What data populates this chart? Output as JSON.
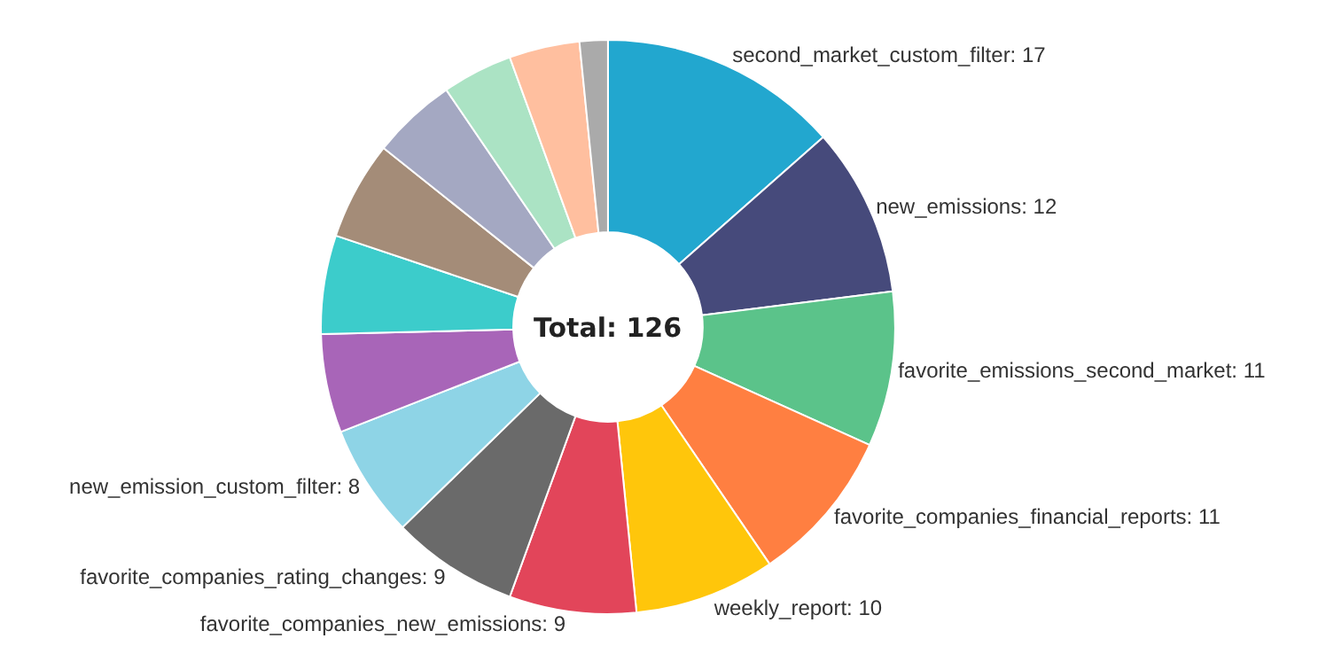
{
  "chart_data": {
    "type": "donut",
    "categories": [
      "second_market_custom_filter",
      "new_emissions",
      "favorite_emissions_second_market",
      "favorite_companies_financial_reports",
      "weekly_report",
      "favorite_companies_new_emissions",
      "favorite_companies_rating_changes",
      "new_emission_custom_filter",
      null,
      null,
      null,
      null,
      null,
      null,
      null
    ],
    "values": [
      17,
      12,
      11,
      11,
      10,
      9,
      9,
      8,
      7,
      7,
      7,
      6,
      5,
      5,
      2
    ],
    "value_labels": [
      "17",
      "12",
      "11",
      "11",
      "10",
      "9",
      "9",
      "8",
      null,
      null,
      null,
      null,
      null,
      null,
      null
    ],
    "colors": [
      "#22a7cf",
      "#464a7b",
      "#5bc38a",
      "#ff7f41",
      "#ffc60b",
      "#e2455a",
      "#6a6a6a",
      "#8ed4e6",
      "#a865b8",
      "#3ccccb",
      "#a48c78",
      "#a4a8c2",
      "#abe3c4",
      "#ffbf9f",
      "#aaaaaa"
    ],
    "annotations": [
      "Total: 126"
    ],
    "legend": false
  }
}
